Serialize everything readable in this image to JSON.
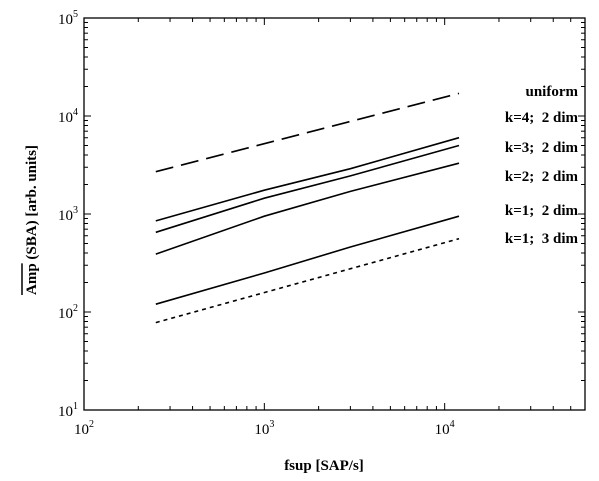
{
  "chart_data": {
    "type": "line",
    "title": "",
    "xlabel": "fsup [SAP/s]",
    "ylabel": "Amp (SBA) [arb. units]",
    "ylabel_overline": "Amp",
    "x_scale": "log",
    "y_scale": "log",
    "xlim": [
      100,
      60000
    ],
    "ylim": [
      10,
      100000
    ],
    "grid": false,
    "x_ticks": [
      {
        "base": "10",
        "exp": "2",
        "value": 100
      },
      {
        "base": "10",
        "exp": "3",
        "value": 1000
      },
      {
        "base": "10",
        "exp": "4",
        "value": 10000
      }
    ],
    "y_ticks": [
      {
        "base": "10",
        "exp": "1",
        "value": 10
      },
      {
        "base": "10",
        "exp": "2",
        "value": 100
      },
      {
        "base": "10",
        "exp": "3",
        "value": 1000
      },
      {
        "base": "10",
        "exp": "4",
        "value": 10000
      },
      {
        "base": "10",
        "exp": "5",
        "value": 100000
      }
    ],
    "series": [
      {
        "name": "uniform",
        "style": "dashed",
        "x": [
          250,
          12000
        ],
        "y": [
          2700,
          17000
        ]
      },
      {
        "name": "k=4;  2 dim",
        "style": "solid",
        "x": [
          250,
          1000,
          3000,
          12000
        ],
        "y": [
          850,
          1750,
          2900,
          6000
        ]
      },
      {
        "name": "k=3;  2 dim",
        "style": "solid",
        "x": [
          250,
          1000,
          3000,
          12000
        ],
        "y": [
          650,
          1450,
          2450,
          5000
        ]
      },
      {
        "name": "k=2;  2 dim",
        "style": "solid",
        "x": [
          250,
          1000,
          3000,
          12000
        ],
        "y": [
          390,
          950,
          1700,
          3300
        ]
      },
      {
        "name": "k=1;  2 dim",
        "style": "solid",
        "x": [
          250,
          1000,
          3000,
          12000
        ],
        "y": [
          120,
          250,
          460,
          950
        ]
      },
      {
        "name": "k=1;  3 dim",
        "style": "dotted",
        "x": [
          250,
          12000
        ],
        "y": [
          78,
          560
        ]
      }
    ]
  }
}
